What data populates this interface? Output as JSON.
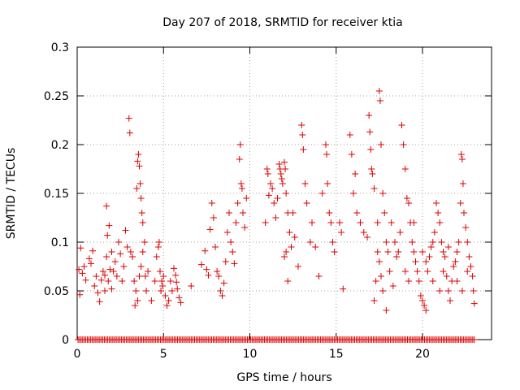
{
  "chart_data": {
    "type": "scatter",
    "title": "Day 207 of 2018, SRMTID for receiver ktia",
    "xlabel": "GPS time / hours",
    "ylabel": "SRMTID / TECUs",
    "xlim": [
      0,
      24
    ],
    "ylim": [
      0,
      0.3
    ],
    "grid": true,
    "x_ticks": [
      0,
      5,
      10,
      15,
      20
    ],
    "x_tick_labels": [
      "0",
      "5",
      "10",
      "15",
      "20"
    ],
    "y_ticks": [
      0,
      0.05,
      0.1,
      0.15,
      0.2,
      0.25,
      0.3
    ],
    "y_tick_labels": [
      "0",
      "0.05",
      "0.1",
      "0.15",
      "0.2",
      "0.25",
      "0.3"
    ],
    "marker": "plus",
    "marker_color": "#dd0000",
    "series": [
      {
        "name": "SRMTID",
        "points": [
          [
            0.1,
            0.072
          ],
          [
            0.15,
            0.046
          ],
          [
            0.2,
            0.094
          ],
          [
            0.3,
            0.068
          ],
          [
            0.4,
            0.075
          ],
          [
            0.5,
            0.061
          ],
          [
            0.7,
            0.083
          ],
          [
            0.8,
            0.078
          ],
          [
            0.9,
            0.091
          ],
          [
            1.0,
            0.055
          ],
          [
            1.1,
            0.065
          ],
          [
            1.2,
            0.048
          ],
          [
            1.3,
            0.039
          ],
          [
            1.4,
            0.061
          ],
          [
            1.5,
            0.07
          ],
          [
            1.6,
            0.05
          ],
          [
            1.7,
            0.085
          ],
          [
            1.8,
            0.06
          ],
          [
            1.9,
            0.072
          ],
          [
            2.0,
            0.052
          ],
          [
            1.6,
            0.066
          ],
          [
            1.7,
            0.137
          ],
          [
            1.75,
            0.107
          ],
          [
            1.85,
            0.117
          ],
          [
            2.0,
            0.09
          ],
          [
            2.1,
            0.07
          ],
          [
            2.2,
            0.08
          ],
          [
            2.3,
            0.065
          ],
          [
            2.4,
            0.1
          ],
          [
            2.5,
            0.088
          ],
          [
            2.6,
            0.06
          ],
          [
            2.7,
            0.075
          ],
          [
            2.8,
            0.112
          ],
          [
            2.9,
            0.095
          ],
          [
            3.0,
            0.227
          ],
          [
            3.05,
            0.212
          ],
          [
            3.1,
            0.09
          ],
          [
            3.2,
            0.085
          ],
          [
            3.3,
            0.06
          ],
          [
            3.4,
            0.05
          ],
          [
            3.45,
            0.155
          ],
          [
            3.5,
            0.183
          ],
          [
            3.55,
            0.19
          ],
          [
            3.6,
            0.178
          ],
          [
            3.65,
            0.16
          ],
          [
            3.7,
            0.145
          ],
          [
            3.75,
            0.13
          ],
          [
            3.8,
            0.12
          ],
          [
            3.9,
            0.1
          ],
          [
            3.95,
            0.065
          ],
          [
            3.35,
            0.035
          ],
          [
            3.5,
            0.04
          ],
          [
            3.6,
            0.065
          ],
          [
            3.7,
            0.075
          ],
          [
            3.8,
            0.09
          ],
          [
            4.0,
            0.05
          ],
          [
            4.1,
            0.07
          ],
          [
            4.3,
            0.04
          ],
          [
            4.5,
            0.06
          ],
          [
            4.6,
            0.085
          ],
          [
            4.7,
            0.095
          ],
          [
            4.75,
            0.1
          ],
          [
            4.8,
            0.07
          ],
          [
            4.85,
            0.05
          ],
          [
            4.9,
            0.06
          ],
          [
            4.95,
            0.055
          ],
          [
            5.0,
            0.065
          ],
          [
            5.1,
            0.045
          ],
          [
            5.2,
            0.035
          ],
          [
            5.3,
            0.04
          ],
          [
            5.4,
            0.06
          ],
          [
            5.5,
            0.05
          ],
          [
            5.6,
            0.073
          ],
          [
            5.7,
            0.066
          ],
          [
            5.75,
            0.059
          ],
          [
            5.8,
            0.052
          ],
          [
            5.9,
            0.043
          ],
          [
            6.0,
            0.038
          ],
          [
            6.6,
            0.055
          ],
          [
            7.2,
            0.077
          ],
          [
            7.4,
            0.091
          ],
          [
            7.5,
            0.072
          ],
          [
            7.6,
            0.066
          ],
          [
            7.7,
            0.113
          ],
          [
            7.8,
            0.14
          ],
          [
            7.9,
            0.125
          ],
          [
            8.0,
            0.095
          ],
          [
            8.1,
            0.07
          ],
          [
            8.2,
            0.065
          ],
          [
            8.3,
            0.05
          ],
          [
            8.4,
            0.045
          ],
          [
            8.5,
            0.058
          ],
          [
            8.6,
            0.08
          ],
          [
            8.7,
            0.11
          ],
          [
            8.8,
            0.13
          ],
          [
            8.9,
            0.1
          ],
          [
            9.0,
            0.09
          ],
          [
            9.1,
            0.078
          ],
          [
            9.2,
            0.12
          ],
          [
            9.3,
            0.14
          ],
          [
            9.4,
            0.185
          ],
          [
            9.45,
            0.2
          ],
          [
            9.5,
            0.16
          ],
          [
            9.55,
            0.155
          ],
          [
            9.6,
            0.13
          ],
          [
            9.7,
            0.115
          ],
          [
            9.8,
            0.145
          ],
          [
            10.9,
            0.12
          ],
          [
            11.0,
            0.175
          ],
          [
            11.05,
            0.17
          ],
          [
            11.1,
            0.148
          ],
          [
            11.2,
            0.16
          ],
          [
            11.3,
            0.155
          ],
          [
            11.4,
            0.14
          ],
          [
            11.5,
            0.125
          ],
          [
            11.6,
            0.145
          ],
          [
            11.7,
            0.18
          ],
          [
            11.75,
            0.175
          ],
          [
            11.8,
            0.17
          ],
          [
            11.85,
            0.165
          ],
          [
            11.9,
            0.16
          ],
          [
            12.0,
            0.182
          ],
          [
            12.05,
            0.175
          ],
          [
            12.1,
            0.15
          ],
          [
            12.2,
            0.13
          ],
          [
            12.3,
            0.11
          ],
          [
            12.4,
            0.095
          ],
          [
            12.0,
            0.085
          ],
          [
            12.1,
            0.09
          ],
          [
            12.2,
            0.06
          ],
          [
            12.5,
            0.13
          ],
          [
            12.6,
            0.105
          ],
          [
            12.8,
            0.075
          ],
          [
            13.0,
            0.22
          ],
          [
            13.05,
            0.21
          ],
          [
            13.1,
            0.195
          ],
          [
            13.2,
            0.16
          ],
          [
            13.3,
            0.14
          ],
          [
            13.5,
            0.1
          ],
          [
            13.6,
            0.12
          ],
          [
            13.8,
            0.095
          ],
          [
            14.0,
            0.065
          ],
          [
            14.2,
            0.15
          ],
          [
            14.4,
            0.2
          ],
          [
            14.45,
            0.19
          ],
          [
            14.5,
            0.16
          ],
          [
            14.6,
            0.13
          ],
          [
            14.7,
            0.12
          ],
          [
            14.8,
            0.1
          ],
          [
            14.9,
            0.09
          ],
          [
            15.2,
            0.12
          ],
          [
            15.3,
            0.11
          ],
          [
            15.4,
            0.052
          ],
          [
            15.8,
            0.21
          ],
          [
            15.9,
            0.19
          ],
          [
            16.0,
            0.15
          ],
          [
            16.1,
            0.17
          ],
          [
            16.2,
            0.13
          ],
          [
            16.4,
            0.12
          ],
          [
            16.6,
            0.11
          ],
          [
            16.8,
            0.105
          ],
          [
            16.9,
            0.23
          ],
          [
            16.95,
            0.213
          ],
          [
            17.0,
            0.195
          ],
          [
            17.05,
            0.175
          ],
          [
            17.1,
            0.17
          ],
          [
            17.2,
            0.155
          ],
          [
            17.4,
            0.12
          ],
          [
            17.5,
            0.08
          ],
          [
            17.6,
            0.065
          ],
          [
            17.7,
            0.05
          ],
          [
            17.5,
            0.255
          ],
          [
            17.55,
            0.245
          ],
          [
            17.6,
            0.2
          ],
          [
            17.7,
            0.15
          ],
          [
            17.8,
            0.13
          ],
          [
            17.9,
            0.1
          ],
          [
            18.0,
            0.09
          ],
          [
            18.2,
            0.12
          ],
          [
            18.4,
            0.1
          ],
          [
            18.5,
            0.085
          ],
          [
            18.6,
            0.09
          ],
          [
            18.7,
            0.11
          ],
          [
            18.8,
            0.22
          ],
          [
            18.9,
            0.2
          ],
          [
            19.0,
            0.175
          ],
          [
            19.1,
            0.145
          ],
          [
            19.2,
            0.14
          ],
          [
            19.3,
            0.12
          ],
          [
            19.4,
            0.1
          ],
          [
            19.5,
            0.09
          ],
          [
            19.6,
            0.08
          ],
          [
            19.7,
            0.07
          ],
          [
            19.8,
            0.06
          ],
          [
            19.9,
            0.045
          ],
          [
            20.0,
            0.04
          ],
          [
            20.1,
            0.035
          ],
          [
            20.2,
            0.03
          ],
          [
            20.3,
            0.07
          ],
          [
            20.4,
            0.085
          ],
          [
            20.5,
            0.095
          ],
          [
            20.6,
            0.1
          ],
          [
            20.7,
            0.11
          ],
          [
            20.8,
            0.14
          ],
          [
            20.9,
            0.13
          ],
          [
            21.0,
            0.12
          ],
          [
            21.1,
            0.1
          ],
          [
            21.2,
            0.09
          ],
          [
            21.3,
            0.085
          ],
          [
            21.4,
            0.065
          ],
          [
            21.5,
            0.05
          ],
          [
            21.6,
            0.04
          ],
          [
            21.7,
            0.06
          ],
          [
            21.8,
            0.075
          ],
          [
            21.9,
            0.08
          ],
          [
            22.0,
            0.09
          ],
          [
            22.1,
            0.1
          ],
          [
            22.2,
            0.14
          ],
          [
            22.25,
            0.19
          ],
          [
            22.3,
            0.185
          ],
          [
            22.35,
            0.16
          ],
          [
            22.4,
            0.13
          ],
          [
            22.5,
            0.115
          ],
          [
            22.6,
            0.1
          ],
          [
            22.7,
            0.085
          ],
          [
            22.8,
            0.075
          ],
          [
            22.9,
            0.065
          ],
          [
            22.95,
            0.05
          ],
          [
            23.0,
            0.037
          ],
          [
            17.2,
            0.04
          ],
          [
            17.3,
            0.06
          ],
          [
            17.4,
            0.09
          ],
          [
            17.9,
            0.03
          ],
          [
            18.1,
            0.07
          ],
          [
            18.3,
            0.055
          ],
          [
            19.0,
            0.07
          ],
          [
            19.2,
            0.06
          ],
          [
            19.5,
            0.12
          ],
          [
            20.0,
            0.09
          ],
          [
            20.2,
            0.08
          ],
          [
            20.6,
            0.06
          ],
          [
            21.0,
            0.05
          ],
          [
            21.2,
            0.07
          ],
          [
            21.5,
            0.095
          ],
          [
            22.0,
            0.06
          ],
          [
            22.3,
            0.05
          ],
          [
            22.6,
            0.07
          ]
        ]
      },
      {
        "name": "zero-baseline",
        "x_range": [
          0.05,
          23.0
        ],
        "step": 0.09,
        "y": 0
      }
    ]
  }
}
